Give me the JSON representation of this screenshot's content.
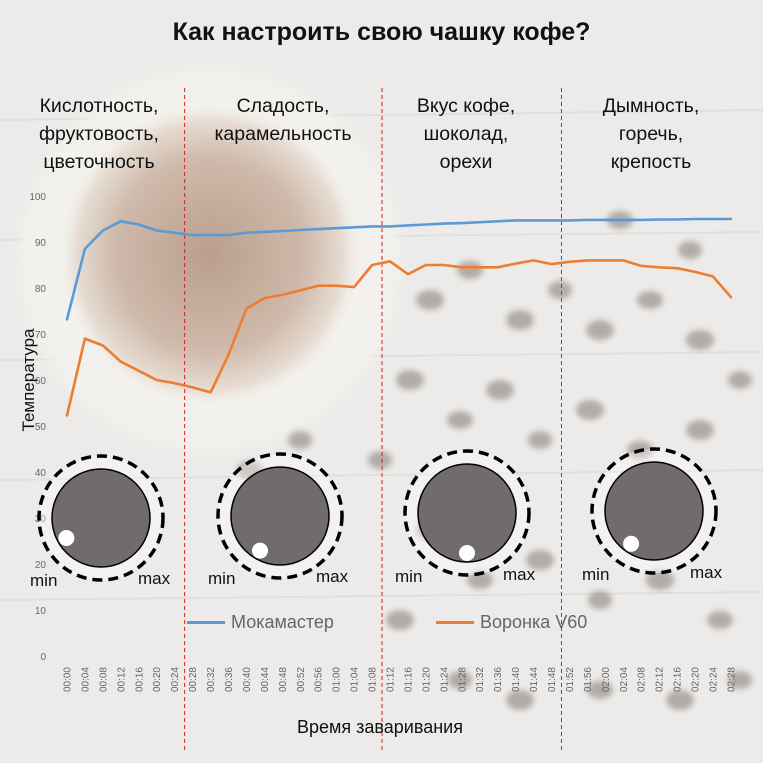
{
  "title": "Как настроить свою чашку кофе?",
  "sections": [
    {
      "lines": [
        "Кислотность,",
        "фруктовость,",
        "цветочность"
      ]
    },
    {
      "lines": [
        "Сладость,",
        "карамельность"
      ]
    },
    {
      "lines": [
        "Вкус кофе,",
        "шоколад,",
        "орехи"
      ]
    },
    {
      "lines": [
        "Дымность,",
        "горечь,",
        "крепость"
      ]
    }
  ],
  "knobs": [
    {
      "min_label": "min",
      "max_label": "max",
      "dot_angle_deg": 240
    },
    {
      "min_label": "min",
      "max_label": "max",
      "dot_angle_deg": 210
    },
    {
      "min_label": "min",
      "max_label": "max",
      "dot_angle_deg": 180
    },
    {
      "min_label": "min",
      "max_label": "max",
      "dot_angle_deg": 215
    }
  ],
  "colors": {
    "mokamaster": "#5b9bd5",
    "v60": "#ed7d31",
    "divider": "#d62020",
    "knob_fill": "#726b6b"
  },
  "chart_data": {
    "type": "line",
    "title": "Как настроить свою чашку кофе?",
    "xlabel": "Время заваривания",
    "ylabel": "Температура",
    "ylim": [
      0,
      100
    ],
    "yticks": [
      0,
      10,
      20,
      30,
      40,
      50,
      60,
      70,
      80,
      90,
      100
    ],
    "x": [
      "00:00",
      "00:04",
      "00:08",
      "00:12",
      "00:16",
      "00:20",
      "00:24",
      "00:28",
      "00:32",
      "00:36",
      "00:40",
      "00:44",
      "00:48",
      "00:52",
      "00:56",
      "01:00",
      "01:04",
      "01:08",
      "01:12",
      "01:16",
      "01:20",
      "01:24",
      "01:28",
      "01:32",
      "01:36",
      "01:40",
      "01:44",
      "01:48",
      "01:52",
      "01:56",
      "02:00",
      "02:04",
      "02:08",
      "02:12",
      "02:16",
      "02:20",
      "02:24",
      "02:28"
    ],
    "series": [
      {
        "name": "Мокамастер",
        "values": [
          73.2,
          88.5,
          92.5,
          94.5,
          93.8,
          92.5,
          92.0,
          91.5,
          91.5,
          91.5,
          92.0,
          92.2,
          92.4,
          92.6,
          92.8,
          93.0,
          93.2,
          93.4,
          93.4,
          93.6,
          93.8,
          94.0,
          94.1,
          94.3,
          94.5,
          94.7,
          94.7,
          94.7,
          94.7,
          94.8,
          94.8,
          94.8,
          94.8,
          94.9,
          94.9,
          95.0,
          95.0,
          95.0
        ]
      },
      {
        "name": "Воронка V60",
        "values": [
          52.3,
          69.0,
          67.5,
          64.0,
          62.0,
          60.0,
          59.3,
          58.4,
          57.3,
          65.5,
          75.5,
          77.8,
          78.5,
          79.5,
          80.5,
          80.5,
          80.2,
          85.0,
          85.8,
          83.0,
          85.0,
          85.0,
          84.5,
          84.5,
          84.5,
          85.3,
          86.0,
          85.2,
          85.7,
          86.0,
          86.0,
          86.0,
          84.8,
          84.5,
          84.3,
          83.5,
          82.5,
          78.0
        ]
      }
    ],
    "dividers_after": [
      "00:24",
      "01:08",
      "01:48"
    ],
    "legend": "bottom"
  }
}
